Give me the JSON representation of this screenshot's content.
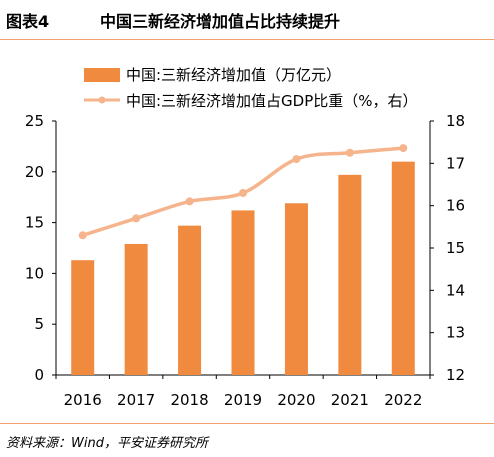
{
  "header": {
    "figure_label": "图表4",
    "title": "中国三新经济增加值占比持续提升"
  },
  "footer": {
    "source": "资料来源：Wind，平安证券研究所"
  },
  "colors": {
    "bar": "#f08a3e",
    "line": "#f5b48c",
    "rule": "#f3a06b"
  },
  "chart_data": {
    "type": "bar",
    "title": "",
    "categories": [
      "2016",
      "2017",
      "2018",
      "2019",
      "2020",
      "2021",
      "2022"
    ],
    "series": [
      {
        "name": "中国:三新经济增加值（万亿元）",
        "type": "bar",
        "axis": "left",
        "values": [
          11.3,
          12.9,
          14.7,
          16.2,
          16.9,
          19.7,
          21.0
        ]
      },
      {
        "name": "中国:三新经济增加值占GDP比重（%，右）",
        "type": "line",
        "axis": "right",
        "values": [
          15.3,
          15.7,
          16.1,
          16.3,
          17.1,
          17.25,
          17.36
        ]
      }
    ],
    "y_left": {
      "ylim": [
        0,
        25
      ],
      "ticks": [
        "0",
        "5",
        "10",
        "15",
        "20",
        "25"
      ]
    },
    "y_right": {
      "ylim": [
        12,
        18
      ],
      "ticks": [
        "12",
        "13",
        "14",
        "15",
        "16",
        "17",
        "18"
      ]
    },
    "legend_position": "top-center",
    "grid": false
  }
}
